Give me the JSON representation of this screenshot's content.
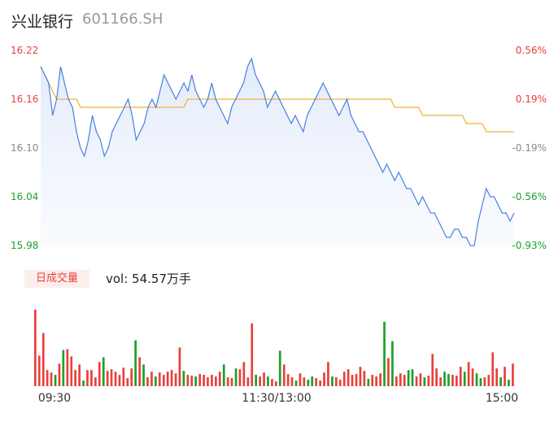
{
  "header": {
    "name": "兴业银行",
    "code": "601166.SH"
  },
  "volume_panel": {
    "tab_label": "日成交量",
    "vol_text": "vol: 54.57万手"
  },
  "colors": {
    "price_line": "#4a7fe0",
    "avg_line": "#f2b233",
    "up": "#e8413b",
    "down": "#1aa12b",
    "neutral": "#888888"
  },
  "chart_data": [
    {
      "type": "line",
      "title": "",
      "ylim": [
        15.98,
        16.22
      ],
      "y_ticks": [
        "16.22",
        "16.16",
        "16.10",
        "16.04",
        "15.98"
      ],
      "pct_ticks": [
        "0.56%",
        "0.19%",
        "-0.19%",
        "-0.56%",
        "-0.93%"
      ],
      "x_ticks": [
        "09:30",
        "11:30/13:00",
        "15:00"
      ],
      "series": [
        {
          "key": "price",
          "values": [
            16.2,
            16.19,
            16.18,
            16.14,
            16.16,
            16.2,
            16.18,
            16.16,
            16.15,
            16.12,
            16.1,
            16.09,
            16.11,
            16.14,
            16.12,
            16.11,
            16.09,
            16.1,
            16.12,
            16.13,
            16.14,
            16.15,
            16.16,
            16.14,
            16.11,
            16.12,
            16.13,
            16.15,
            16.16,
            16.15,
            16.17,
            16.19,
            16.18,
            16.17,
            16.16,
            16.17,
            16.18,
            16.17,
            16.19,
            16.17,
            16.16,
            16.15,
            16.16,
            16.18,
            16.16,
            16.15,
            16.14,
            16.13,
            16.15,
            16.16,
            16.17,
            16.18,
            16.2,
            16.21,
            16.19,
            16.18,
            16.17,
            16.15,
            16.16,
            16.17,
            16.16,
            16.15,
            16.14,
            16.13,
            16.14,
            16.13,
            16.12,
            16.14,
            16.15,
            16.16,
            16.17,
            16.18,
            16.17,
            16.16,
            16.15,
            16.14,
            16.15,
            16.16,
            16.14,
            16.13,
            16.12,
            16.12,
            16.11,
            16.1,
            16.09,
            16.08,
            16.07,
            16.08,
            16.07,
            16.06,
            16.07,
            16.06,
            16.05,
            16.05,
            16.04,
            16.03,
            16.04,
            16.03,
            16.02,
            16.02,
            16.01,
            16.0,
            15.99,
            15.99,
            16.0,
            16.0,
            15.99,
            15.99,
            15.98,
            15.98,
            16.01,
            16.03,
            16.05,
            16.04,
            16.04,
            16.03,
            16.02,
            16.02,
            16.01,
            16.02
          ]
        },
        {
          "key": "avg",
          "values": [
            16.2,
            16.19,
            16.18,
            16.17,
            16.16,
            16.16,
            16.16,
            16.16,
            16.16,
            16.16,
            16.15,
            16.15,
            16.15,
            16.15,
            16.15,
            16.15,
            16.15,
            16.15,
            16.15,
            16.15,
            16.15,
            16.15,
            16.15,
            16.15,
            16.15,
            16.15,
            16.15,
            16.15,
            16.15,
            16.15,
            16.15,
            16.15,
            16.15,
            16.15,
            16.15,
            16.15,
            16.15,
            16.16,
            16.16,
            16.16,
            16.16,
            16.16,
            16.16,
            16.16,
            16.16,
            16.16,
            16.16,
            16.16,
            16.16,
            16.16,
            16.16,
            16.16,
            16.16,
            16.16,
            16.16,
            16.16,
            16.16,
            16.16,
            16.16,
            16.16,
            16.16,
            16.16,
            16.16,
            16.16,
            16.16,
            16.16,
            16.16,
            16.16,
            16.16,
            16.16,
            16.16,
            16.16,
            16.16,
            16.16,
            16.16,
            16.16,
            16.16,
            16.16,
            16.16,
            16.16,
            16.16,
            16.16,
            16.16,
            16.16,
            16.16,
            16.16,
            16.16,
            16.16,
            16.16,
            16.15,
            16.15,
            16.15,
            16.15,
            16.15,
            16.15,
            16.15,
            16.14,
            16.14,
            16.14,
            16.14,
            16.14,
            16.14,
            16.14,
            16.14,
            16.14,
            16.14,
            16.14,
            16.13,
            16.13,
            16.13,
            16.13,
            16.13,
            16.12,
            16.12,
            16.12,
            16.12,
            16.12,
            16.12,
            16.12,
            16.12
          ]
        }
      ]
    },
    {
      "type": "bar",
      "title": "日成交量",
      "ylim": [
        0,
        100
      ],
      "values": [
        95,
        38,
        66,
        20,
        17,
        14,
        28,
        45,
        46,
        37,
        20,
        27,
        7,
        20,
        20,
        11,
        30,
        36,
        19,
        21,
        18,
        14,
        23,
        10,
        22,
        57,
        36,
        27,
        11,
        18,
        12,
        17,
        14,
        18,
        20,
        16,
        48,
        19,
        14,
        13,
        12,
        15,
        14,
        11,
        14,
        12,
        18,
        27,
        11,
        10,
        22,
        21,
        30,
        11,
        78,
        14,
        12,
        17,
        12,
        9,
        6,
        44,
        27,
        15,
        11,
        7,
        16,
        11,
        8,
        12,
        10,
        7,
        17,
        30,
        12,
        11,
        8,
        18,
        21,
        14,
        15,
        24,
        19,
        9,
        14,
        12,
        16,
        80,
        35,
        56,
        12,
        16,
        14,
        20,
        21,
        12,
        16,
        11,
        13,
        40,
        22,
        11,
        18,
        15,
        14,
        13,
        24,
        18,
        30,
        22,
        16,
        10,
        11,
        14,
        42,
        22,
        11,
        24,
        8,
        28
      ],
      "colors_per_bar": [
        "up",
        "up",
        "up",
        "up",
        "up",
        "down",
        "up",
        "down",
        "up",
        "up",
        "up",
        "up",
        "down",
        "up",
        "up",
        "up",
        "up",
        "down",
        "up",
        "up",
        "up",
        "up",
        "up",
        "up",
        "up",
        "down",
        "up",
        "down",
        "up",
        "up",
        "down",
        "up",
        "up",
        "up",
        "up",
        "up",
        "up",
        "down",
        "up",
        "up",
        "down",
        "up",
        "up",
        "up",
        "up",
        "up",
        "up",
        "down",
        "up",
        "up",
        "down",
        "up",
        "up",
        "up",
        "up",
        "down",
        "up",
        "up",
        "down",
        "up",
        "up",
        "down",
        "up",
        "up",
        "up",
        "down",
        "up",
        "up",
        "down",
        "down",
        "up",
        "up",
        "up",
        "up",
        "down",
        "up",
        "up",
        "up",
        "up",
        "up",
        "up",
        "up",
        "up",
        "down",
        "up",
        "up",
        "up",
        "down",
        "up",
        "down",
        "up",
        "up",
        "up",
        "down",
        "down",
        "up",
        "up",
        "down",
        "up",
        "up",
        "up",
        "up",
        "down",
        "down",
        "up",
        "up",
        "up",
        "down",
        "up",
        "up",
        "down",
        "down",
        "up",
        "up",
        "up",
        "up",
        "down",
        "up",
        "down",
        "up"
      ]
    }
  ]
}
